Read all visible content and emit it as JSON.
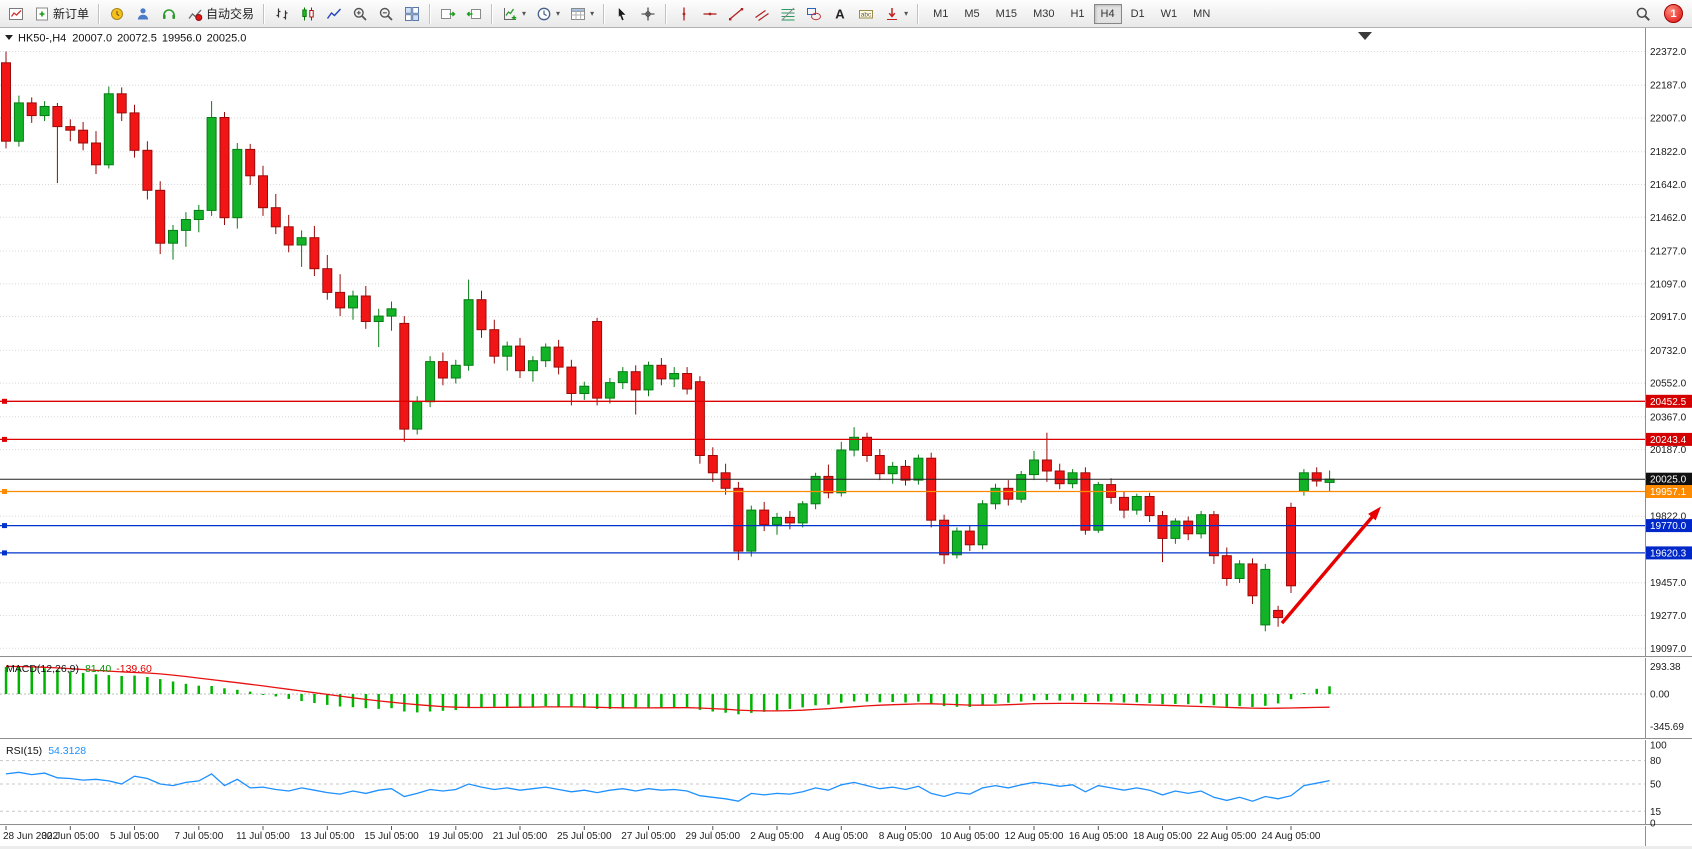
{
  "toolbar": {
    "items": [
      {
        "name": "new-chart-button",
        "icon": "newchart"
      },
      {
        "name": "new-order-button",
        "icon": "order",
        "label": "新订单"
      },
      {
        "type": "separator"
      },
      {
        "name": "market-watch-button",
        "icon": "mwatch"
      },
      {
        "name": "navigator-button",
        "icon": "nav"
      },
      {
        "name": "support-button",
        "icon": "term"
      },
      {
        "name": "autotrading-button",
        "icon": "autotrade",
        "label": "自动交易"
      },
      {
        "type": "separator"
      },
      {
        "name": "bar-chart-button",
        "icon": "bars"
      },
      {
        "name": "candlestick-chart-button",
        "icon": "candles"
      },
      {
        "name": "line-chart-button",
        "icon": "linechart"
      },
      {
        "name": "zoom-in-button",
        "icon": "zoomin"
      },
      {
        "name": "zoom-out-button",
        "icon": "zoomout"
      },
      {
        "name": "tile-windows-button",
        "icon": "tile"
      },
      {
        "type": "separator"
      },
      {
        "name": "auto-scroll-button",
        "icon": "autoscroll"
      },
      {
        "name": "chart-shift-button",
        "icon": "shift"
      },
      {
        "type": "separator"
      },
      {
        "name": "indicators-button",
        "icon": "indicators",
        "dropdown": true
      },
      {
        "name": "periods-button",
        "icon": "clock",
        "dropdown": true
      },
      {
        "name": "templates-button",
        "icon": "template",
        "dropdown": true
      },
      {
        "type": "separator"
      },
      {
        "name": "cursor-button",
        "icon": "cursor"
      },
      {
        "name": "crosshair-button",
        "icon": "crosshair"
      },
      {
        "type": "separator"
      },
      {
        "name": "vertical-line-button",
        "icon": "vline"
      },
      {
        "name": "horizontal-line-button",
        "icon": "hline"
      },
      {
        "name": "trendline-button",
        "icon": "trend"
      },
      {
        "name": "equidistant-channel-button",
        "icon": "channel"
      },
      {
        "name": "fibonacci-button",
        "icon": "fibo"
      },
      {
        "name": "shapes-button",
        "icon": "shapes"
      },
      {
        "name": "text-button",
        "icon": "text"
      },
      {
        "name": "text-label-button",
        "icon": "label"
      },
      {
        "name": "arrows-button",
        "icon": "arrows",
        "dropdown": true
      },
      {
        "type": "separator"
      }
    ],
    "timeframes": {
      "items": [
        "M1",
        "M5",
        "M15",
        "M30",
        "H1",
        "H4",
        "D1",
        "W1",
        "MN"
      ],
      "active": "H4"
    },
    "right": {
      "search_icon": "search",
      "notification_count": "1"
    }
  },
  "chart": {
    "symbol_header": {
      "symbol": "HK50-,H4",
      "open": "20007.0",
      "high": "20072.5",
      "low": "19956.0",
      "close": "20025.0"
    },
    "price_axis_labels": [
      "22372.0",
      "22187.0",
      "22007.0",
      "21822.0",
      "21642.0",
      "21462.0",
      "21277.0",
      "21097.0",
      "20917.0",
      "20732.0",
      "20552.0",
      "20367.0",
      "20187.0",
      "19822.0",
      "19457.0",
      "19277.0",
      "19097.0"
    ],
    "time_axis_labels": [
      "28 Jun 2022",
      "30 Jun 05:00",
      "5 Jul 05:00",
      "7 Jul 05:00",
      "11 Jul 05:00",
      "13 Jul 05:00",
      "15 Jul 05:00",
      "19 Jul 05:00",
      "21 Jul 05:00",
      "25 Jul 05:00",
      "27 Jul 05:00",
      "29 Jul 05:00",
      "2 Aug 05:00",
      "4 Aug 05:00",
      "8 Aug 05:00",
      "10 Aug 05:00",
      "12 Aug 05:00",
      "16 Aug 05:00",
      "18 Aug 05:00",
      "22 Aug 05:00",
      "24 Aug 05:00"
    ],
    "horizontal_lines": [
      {
        "price": 20452.5,
        "label": "20452.5",
        "color": "#dd0000",
        "tag_bg": "#d40000"
      },
      {
        "price": 20243.4,
        "label": "20243.4",
        "color": "#dd0000",
        "tag_bg": "#d40000"
      },
      {
        "price": 20025.0,
        "label": "20025.0",
        "color": "#222222",
        "tag_bg": "#111111"
      },
      {
        "price": 19957.1,
        "label": "19957.1",
        "color": "#ff8a00",
        "tag_bg": "#ff8a00"
      },
      {
        "price": 19770.0,
        "label": "19770.0",
        "color": "#0033cc",
        "tag_bg": "#0028c8"
      },
      {
        "price": 19620.3,
        "label": "19620.3",
        "color": "#0033cc",
        "tag_bg": "#0028c8"
      }
    ],
    "trend_arrow": {
      "from_index": 99.3,
      "from_price": 19235,
      "to_index": 107,
      "to_price": 19875,
      "color": "#e80000"
    },
    "colors": {
      "bull": "#12b327",
      "bull_dark": "#067d14",
      "bear": "#f21515",
      "bear_dark": "#990a0a",
      "grid": "#d8d8d8",
      "bg": "#ffffff"
    },
    "chart_data": {
      "type": "candlestick",
      "price_range": [
        19060,
        22490
      ],
      "candles": [
        [
          22310,
          22372,
          21840,
          21880
        ],
        [
          21880,
          22130,
          21850,
          22090
        ],
        [
          22090,
          22120,
          21980,
          22020
        ],
        [
          22020,
          22100,
          21990,
          22070
        ],
        [
          22070,
          22090,
          21650,
          21960
        ],
        [
          21960,
          22000,
          21880,
          21940
        ],
        [
          21940,
          21985,
          21830,
          21870
        ],
        [
          21870,
          21935,
          21700,
          21750
        ],
        [
          21750,
          22180,
          21730,
          22140
        ],
        [
          22140,
          22175,
          21990,
          22035
        ],
        [
          22035,
          22080,
          21790,
          21830
        ],
        [
          21830,
          21880,
          21560,
          21610
        ],
        [
          21610,
          21660,
          21260,
          21320
        ],
        [
          21320,
          21420,
          21230,
          21390
        ],
        [
          21390,
          21490,
          21300,
          21450
        ],
        [
          21450,
          21530,
          21380,
          21500
        ],
        [
          21500,
          22100,
          21470,
          22010
        ],
        [
          22010,
          22040,
          21420,
          21460
        ],
        [
          21460,
          21870,
          21400,
          21835
        ],
        [
          21835,
          21865,
          21640,
          21690
        ],
        [
          21690,
          21745,
          21470,
          21515
        ],
        [
          21515,
          21590,
          21370,
          21410
        ],
        [
          21410,
          21475,
          21270,
          21310
        ],
        [
          21310,
          21390,
          21190,
          21350
        ],
        [
          21350,
          21415,
          21140,
          21180
        ],
        [
          21180,
          21255,
          21010,
          21050
        ],
        [
          21050,
          21150,
          20920,
          20965
        ],
        [
          20965,
          21060,
          20900,
          21030
        ],
        [
          21030,
          21085,
          20850,
          20890
        ],
        [
          20890,
          20960,
          20750,
          20920
        ],
        [
          20920,
          21000,
          20840,
          20960
        ],
        [
          20880,
          20920,
          20230,
          20300
        ],
        [
          20300,
          20480,
          20270,
          20450
        ],
        [
          20450,
          20700,
          20420,
          20670
        ],
        [
          20670,
          20720,
          20540,
          20580
        ],
        [
          20580,
          20680,
          20550,
          20650
        ],
        [
          20650,
          21120,
          20620,
          21010
        ],
        [
          21010,
          21060,
          20800,
          20845
        ],
        [
          20845,
          20900,
          20660,
          20700
        ],
        [
          20700,
          20780,
          20620,
          20755
        ],
        [
          20755,
          20800,
          20580,
          20620
        ],
        [
          20620,
          20700,
          20560,
          20675
        ],
        [
          20675,
          20770,
          20640,
          20750
        ],
        [
          20750,
          20790,
          20600,
          20640
        ],
        [
          20640,
          20680,
          20430,
          20495
        ],
        [
          20495,
          20560,
          20460,
          20535
        ],
        [
          20890,
          20910,
          20430,
          20470
        ],
        [
          20470,
          20580,
          20440,
          20555
        ],
        [
          20555,
          20640,
          20520,
          20615
        ],
        [
          20615,
          20650,
          20380,
          20515
        ],
        [
          20515,
          20670,
          20480,
          20650
        ],
        [
          20650,
          20690,
          20540,
          20575
        ],
        [
          20575,
          20640,
          20530,
          20605
        ],
        [
          20605,
          20640,
          20490,
          20520
        ],
        [
          20560,
          20590,
          20110,
          20155
        ],
        [
          20155,
          20200,
          20010,
          20060
        ],
        [
          20060,
          20110,
          19940,
          19975
        ],
        [
          19975,
          20010,
          19580,
          19630
        ],
        [
          19630,
          19880,
          19600,
          19855
        ],
        [
          19855,
          19900,
          19740,
          19775
        ],
        [
          19775,
          19840,
          19720,
          19815
        ],
        [
          19815,
          19850,
          19750,
          19785
        ],
        [
          19785,
          19905,
          19760,
          19890
        ],
        [
          19890,
          20060,
          19860,
          20040
        ],
        [
          20040,
          20105,
          19920,
          19950
        ],
        [
          19950,
          20230,
          19930,
          20185
        ],
        [
          20185,
          20310,
          20150,
          20255
        ],
        [
          20255,
          20280,
          20120,
          20155
        ],
        [
          20155,
          20190,
          20020,
          20055
        ],
        [
          20055,
          20120,
          20000,
          20095
        ],
        [
          20095,
          20130,
          19990,
          20020
        ],
        [
          20020,
          20160,
          19995,
          20140
        ],
        [
          20140,
          20170,
          19760,
          19800
        ],
        [
          19800,
          19830,
          19560,
          19610
        ],
        [
          19610,
          19760,
          19590,
          19740
        ],
        [
          19740,
          19770,
          19630,
          19665
        ],
        [
          19665,
          19910,
          19640,
          19890
        ],
        [
          19890,
          20000,
          19860,
          19975
        ],
        [
          19975,
          20020,
          19880,
          19915
        ],
        [
          19915,
          20070,
          19895,
          20050
        ],
        [
          20050,
          20180,
          20020,
          20130
        ],
        [
          20130,
          20280,
          20010,
          20070
        ],
        [
          20070,
          20110,
          19970,
          20000
        ],
        [
          20000,
          20080,
          19975,
          20060
        ],
        [
          20060,
          20090,
          19720,
          19745
        ],
        [
          19745,
          20010,
          19730,
          19995
        ],
        [
          19995,
          20030,
          19890,
          19925
        ],
        [
          19925,
          19960,
          19810,
          19855
        ],
        [
          19855,
          19945,
          19830,
          19930
        ],
        [
          19930,
          19950,
          19790,
          19825
        ],
        [
          19825,
          19850,
          19570,
          19700
        ],
        [
          19700,
          19810,
          19670,
          19795
        ],
        [
          19795,
          19820,
          19690,
          19725
        ],
        [
          19725,
          19850,
          19700,
          19830
        ],
        [
          19830,
          19850,
          19560,
          19605
        ],
        [
          19605,
          19650,
          19440,
          19480
        ],
        [
          19480,
          19580,
          19455,
          19560
        ],
        [
          19560,
          19590,
          19340,
          19385
        ],
        [
          19225,
          19560,
          19190,
          19530
        ],
        [
          19305,
          19330,
          19215,
          19265
        ],
        [
          19870,
          19895,
          19400,
          19440
        ],
        [
          19960,
          20080,
          19935,
          20060
        ],
        [
          20060,
          20090,
          19985,
          20015
        ],
        [
          20007,
          20072.5,
          19956,
          20025
        ]
      ]
    }
  },
  "macd": {
    "title": "MACD(12,26,9)",
    "main_value": "81.40",
    "signal_value": "-139.60",
    "axis_labels": [
      "293.38",
      "0.00",
      "-345.69"
    ],
    "range": [
      -455,
      381
    ],
    "colors": {
      "hist": "#00b400",
      "signal": "#e81010"
    },
    "histogram": [
      288,
      292,
      285,
      272,
      255,
      238,
      222,
      208,
      200,
      190,
      195,
      180,
      158,
      132,
      108,
      88,
      85,
      60,
      45,
      25,
      0,
      -25,
      -52,
      -75,
      -95,
      -115,
      -132,
      -140,
      -150,
      -158,
      -150,
      -185,
      -195,
      -185,
      -178,
      -170,
      -148,
      -140,
      -135,
      -132,
      -134,
      -132,
      -128,
      -132,
      -142,
      -145,
      -158,
      -158,
      -152,
      -152,
      -145,
      -145,
      -140,
      -145,
      -168,
      -185,
      -198,
      -215,
      -200,
      -188,
      -172,
      -158,
      -142,
      -120,
      -112,
      -92,
      -78,
      -80,
      -88,
      -85,
      -90,
      -82,
      -105,
      -128,
      -135,
      -138,
      -120,
      -100,
      -92,
      -80,
      -68,
      -65,
      -70,
      -68,
      -85,
      -78,
      -82,
      -90,
      -88,
      -95,
      -108,
      -105,
      -108,
      -100,
      -118,
      -135,
      -128,
      -138,
      -125,
      -100,
      -55,
      10,
      55,
      81.4
    ],
    "signal": [
      293,
      291,
      288,
      283,
      276,
      268,
      259,
      250,
      242,
      234,
      228,
      222,
      213,
      200,
      185,
      168,
      152,
      136,
      120,
      103,
      86,
      68,
      50,
      32,
      14,
      -4,
      -22,
      -40,
      -57,
      -73,
      -87,
      -100,
      -113,
      -124,
      -133,
      -140,
      -143,
      -143,
      -142,
      -141,
      -140,
      -139,
      -137,
      -136,
      -137,
      -138,
      -141,
      -144,
      -146,
      -147,
      -147,
      -146,
      -145,
      -145,
      -148,
      -154,
      -161,
      -170,
      -176,
      -179,
      -179,
      -176,
      -171,
      -163,
      -155,
      -145,
      -135,
      -126,
      -119,
      -113,
      -109,
      -105,
      -104,
      -107,
      -112,
      -117,
      -119,
      -117,
      -113,
      -108,
      -102,
      -100,
      -99,
      -99,
      -100,
      -102,
      -105,
      -108,
      -112,
      -116,
      -120,
      -124,
      -128,
      -132,
      -137,
      -142,
      -146,
      -149,
      -151,
      -150,
      -148,
      -145,
      -142,
      -139.6
    ]
  },
  "rsi": {
    "title": "RSI(15)",
    "value": "54.3128",
    "axis_labels": [
      "100",
      "80",
      "50",
      "15",
      "0"
    ],
    "levels": [
      80,
      50,
      15
    ],
    "color": "#1e90ff",
    "values": [
      63,
      65,
      62,
      64,
      58,
      57,
      55,
      56,
      54,
      50,
      60,
      57,
      50,
      48,
      52,
      54,
      63,
      48,
      56,
      45,
      46,
      43,
      41,
      45,
      42,
      39,
      37,
      41,
      38,
      42,
      44,
      34,
      38,
      43,
      41,
      43,
      50,
      46,
      43,
      45,
      42,
      44,
      46,
      43,
      40,
      42,
      39,
      42,
      44,
      41,
      44,
      42,
      43,
      41,
      35,
      33,
      31,
      28,
      38,
      36,
      38,
      37,
      40,
      45,
      42,
      49,
      52,
      48,
      44,
      46,
      43,
      47,
      38,
      34,
      39,
      37,
      45,
      48,
      45,
      49,
      52,
      50,
      47,
      49,
      40,
      48,
      45,
      42,
      45,
      42,
      36,
      41,
      38,
      41,
      33,
      29,
      33,
      28,
      34,
      31,
      35,
      48,
      51,
      54.31
    ]
  }
}
